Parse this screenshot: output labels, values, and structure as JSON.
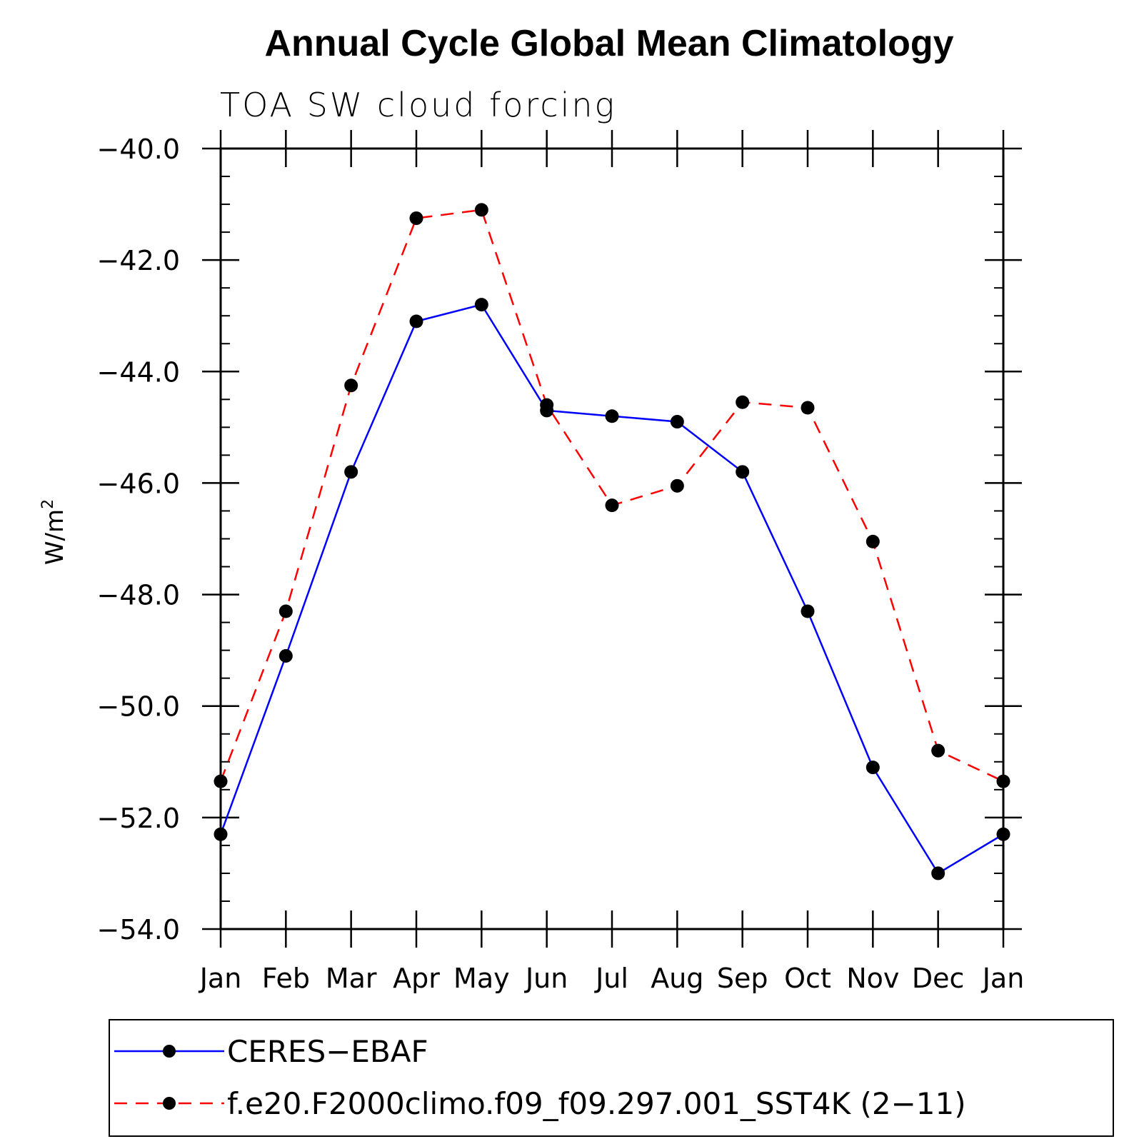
{
  "chart_data": {
    "type": "line",
    "title": "Annual Cycle Global Mean Climatology",
    "subtitle": "TOA SW cloud forcing",
    "xlabel": "",
    "ylabel": "W/m",
    "ylabel_superscript": "2",
    "categories": [
      "Jan",
      "Feb",
      "Mar",
      "Apr",
      "May",
      "Jun",
      "Jul",
      "Aug",
      "Sep",
      "Oct",
      "Nov",
      "Dec",
      "Jan"
    ],
    "ylim": [
      -54.0,
      -40.0
    ],
    "yticks": [
      -40.0,
      -42.0,
      -44.0,
      -46.0,
      -48.0,
      -50.0,
      -52.0,
      -54.0
    ],
    "ytick_labels": [
      "−40.0",
      "−42.0",
      "−44.0",
      "−46.0",
      "−48.0",
      "−50.0",
      "−52.0",
      "−54.0"
    ],
    "yminor_step": 0.5,
    "series": [
      {
        "name": "CERES−EBAF",
        "color": "#0000ff",
        "style": "solid",
        "marker": "circle",
        "values": [
          -52.3,
          -49.1,
          -45.8,
          -43.1,
          -42.8,
          -44.7,
          -44.8,
          -44.9,
          -45.8,
          -48.3,
          -51.1,
          -53.0,
          -52.3
        ]
      },
      {
        "name": "f.e20.F2000climo.f09_f09.297.001_SST4K (2−11)",
        "color": "#ff0000",
        "style": "dashed",
        "marker": "circle",
        "values": [
          -51.35,
          -48.3,
          -44.25,
          -41.25,
          -41.1,
          -44.6,
          -46.4,
          -46.05,
          -44.55,
          -44.65,
          -47.05,
          -50.8,
          -51.35
        ]
      }
    ],
    "legend_position": "bottom"
  }
}
